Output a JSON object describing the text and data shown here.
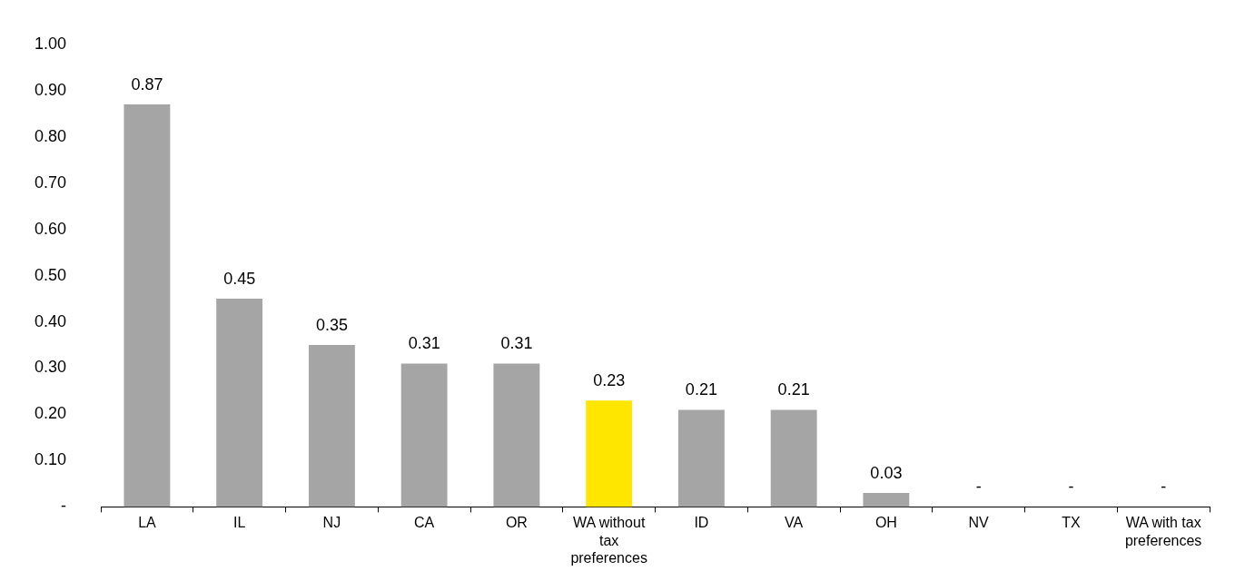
{
  "chart_data": {
    "type": "bar",
    "categories": [
      "LA",
      "IL",
      "NJ",
      "CA",
      "OR",
      "WA without tax preferences",
      "ID",
      "VA",
      "OH",
      "NV",
      "TX",
      "WA with tax preferences"
    ],
    "values": [
      0.87,
      0.45,
      0.35,
      0.31,
      0.31,
      0.23,
      0.21,
      0.21,
      0.03,
      0,
      0,
      0
    ],
    "colors": [
      "#a5a5a5",
      "#a5a5a5",
      "#a5a5a5",
      "#a5a5a5",
      "#a5a5a5",
      "#ffe600",
      "#a5a5a5",
      "#a5a5a5",
      "#a5a5a5",
      "#a5a5a5",
      "#a5a5a5",
      "#a5a5a5"
    ],
    "value_labels": [
      "0.87",
      "0.45",
      "0.35",
      "0.31",
      "0.31",
      "0.23",
      "0.21",
      "0.21",
      "0.03",
      "-",
      "-",
      "-"
    ],
    "ylim": [
      0,
      1
    ],
    "yticks": [
      {
        "value": 0,
        "label": "-"
      },
      {
        "value": 0.1,
        "label": "0.10"
      },
      {
        "value": 0.2,
        "label": "0.20"
      },
      {
        "value": 0.3,
        "label": "0.30"
      },
      {
        "value": 0.4,
        "label": "0.40"
      },
      {
        "value": 0.5,
        "label": "0.50"
      },
      {
        "value": 0.6,
        "label": "0.60"
      },
      {
        "value": 0.7,
        "label": "0.70"
      },
      {
        "value": 0.8,
        "label": "0.80"
      },
      {
        "value": 0.9,
        "label": "0.90"
      },
      {
        "value": 1,
        "label": "1.00"
      }
    ]
  }
}
